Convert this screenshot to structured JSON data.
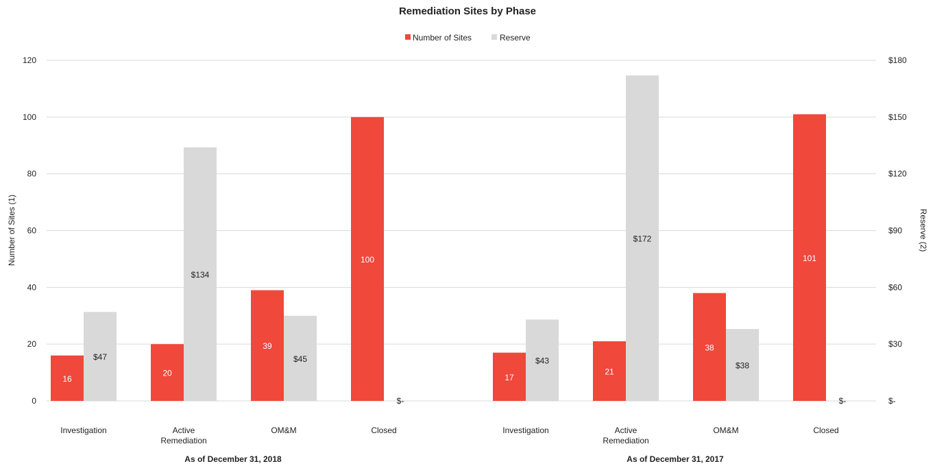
{
  "chart_data": {
    "type": "bar",
    "title": "Remediation Sites by Phase",
    "legend": {
      "placement": "top-center",
      "entries": [
        "Number of Sites",
        "Reserve"
      ]
    },
    "colors": {
      "Number of Sites": "#f0483a",
      "Reserve": "#d9d9d9",
      "grid": "#d9d9d9"
    },
    "grid": true,
    "left_axis": {
      "label": "Number of Sites (1)",
      "range": [
        0,
        120
      ],
      "ticks": [
        "0",
        "20",
        "40",
        "60",
        "80",
        "100",
        "120"
      ]
    },
    "right_axis": {
      "label": "Reserve (2)",
      "range": [
        0,
        180
      ],
      "ticks": [
        "$-",
        "$30",
        "$60",
        "$90",
        "$120",
        "$150",
        "$180"
      ]
    },
    "groups": [
      {
        "label": "As of December 31, 2018",
        "categories": [
          "Investigation",
          "Active\nRemediation",
          "OM&M",
          "Closed"
        ],
        "series": [
          {
            "name": "Number of Sites",
            "axis": "left",
            "values": [
              16,
              20,
              39,
              100
            ],
            "labels": [
              "16",
              "20",
              "39",
              "100"
            ]
          },
          {
            "name": "Reserve",
            "axis": "right",
            "values": [
              47,
              134,
              45,
              0
            ],
            "labels": [
              "$47",
              "$134",
              "$45",
              "$-"
            ]
          }
        ]
      },
      {
        "label": "As of December 31, 2017",
        "categories": [
          "Investigation",
          "Active\nRemediation",
          "OM&M",
          "Closed"
        ],
        "series": [
          {
            "name": "Number of Sites",
            "axis": "left",
            "values": [
              17,
              21,
              38,
              101
            ],
            "labels": [
              "17",
              "21",
              "38",
              "101"
            ]
          },
          {
            "name": "Reserve",
            "axis": "right",
            "values": [
              43,
              172,
              38,
              0
            ],
            "labels": [
              "$43",
              "$172",
              "$38",
              "$-"
            ]
          }
        ]
      }
    ]
  }
}
